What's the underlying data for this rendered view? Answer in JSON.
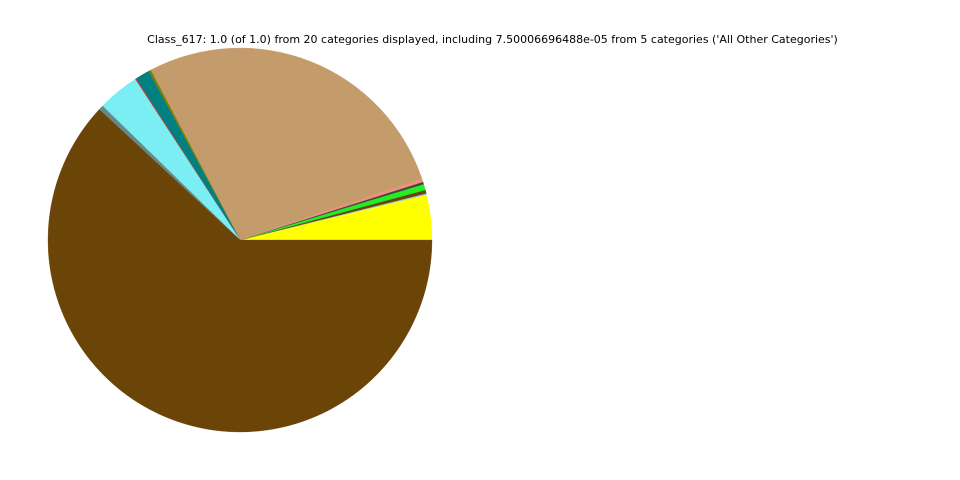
{
  "chart_data": {
    "type": "pie",
    "title": "Class_617: 1.0 (of 1.0) from 20 categories displayed, including 7.50006696488e-05 from 5 categories ('All Other Categories')",
    "start_angle_deg": 0,
    "direction": "counterclockwise",
    "legend": "none",
    "values": [
      0.038,
      0.001,
      0.003,
      0.005,
      0.002,
      0.003,
      0.275,
      0.002,
      0.012,
      0.001,
      0.035,
      0.004,
      0.619
    ],
    "colors": [
      "#ffff00",
      "#87ceeb",
      "#6b4508",
      "#22ee22",
      "#444444",
      "#f0907a",
      "#c49c6c",
      "#808000",
      "#008080",
      "#cc3333",
      "#7beef4",
      "#668888",
      "#6b4508"
    ]
  }
}
